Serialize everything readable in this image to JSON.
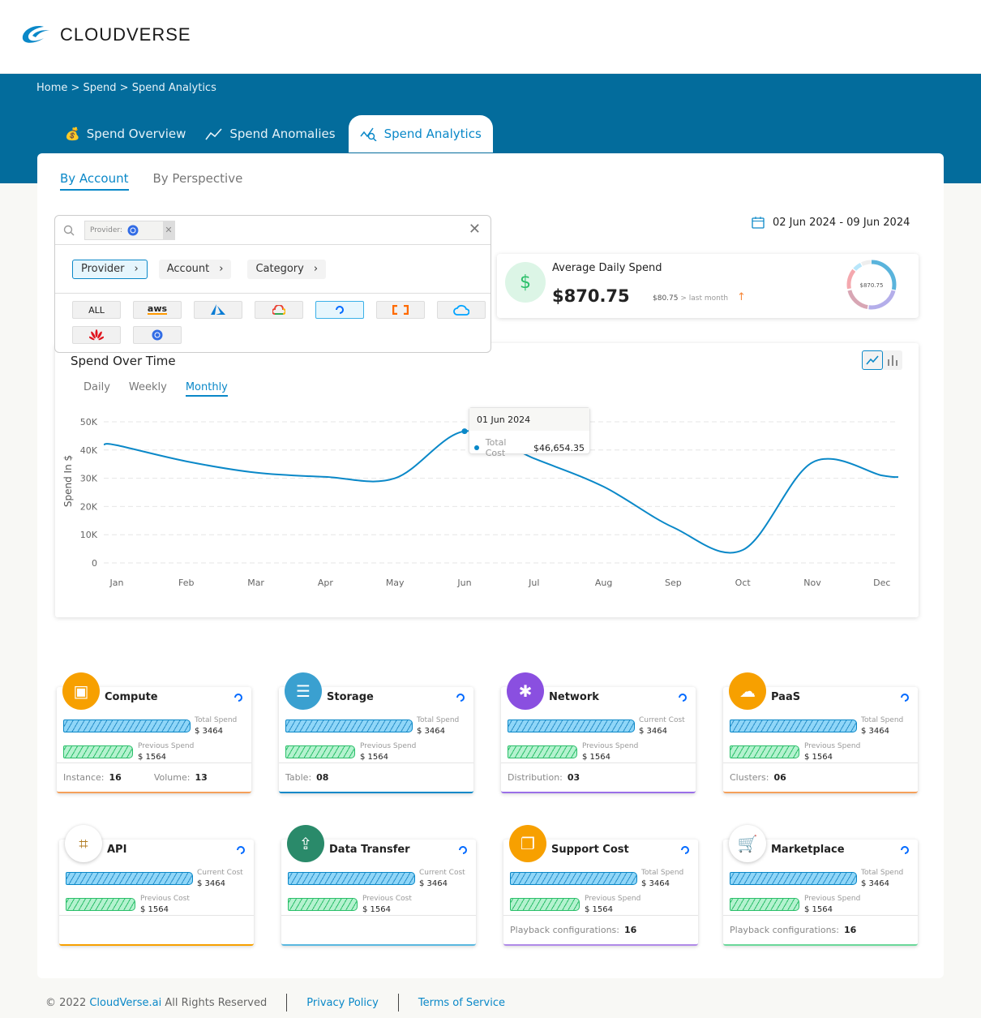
{
  "brand": {
    "name": "CLOUDVERSE",
    "color": "#036c9c"
  },
  "breadcrumb": "Home > Spend > Spend Analytics",
  "tabs": [
    {
      "label": "Spend Overview",
      "icon": "money-bag-icon"
    },
    {
      "label": "Spend Anomalies",
      "icon": "anomaly-icon"
    },
    {
      "label": "Spend Analytics",
      "icon": "analytics-icon",
      "active": true
    }
  ],
  "subtabs": [
    {
      "label": "By Account",
      "active": true
    },
    {
      "label": "By Perspective"
    }
  ],
  "filter": {
    "chip_label": "Provider:",
    "chip_value_icon": "kubernetes-icon",
    "levels": [
      "Provider",
      "Account",
      "Category"
    ],
    "active_level": "Provider",
    "providers": [
      "ALL",
      "aws",
      "azure",
      "google-cloud",
      "digitalocean",
      "alibaba-cloud",
      "tencent-cloud",
      "huawei",
      "kubernetes"
    ],
    "selected_provider": "digitalocean"
  },
  "date_range": "02 Jun 2024 - 09 Jun 2024",
  "avg_spend": {
    "title": "Average Daily Spend",
    "value": "$870.75",
    "delta": "$80.75",
    "delta_text": "> last month",
    "trend": "up",
    "donut_label": "$870.75"
  },
  "chart_data": {
    "type": "line",
    "title": "Spend Over Time",
    "periods": [
      "Daily",
      "Weekly",
      "Monthly"
    ],
    "active_period": "Monthly",
    "ylabel": "Spend In $",
    "ylim": [
      0,
      50000
    ],
    "yticks": [
      "0",
      "10K",
      "20K",
      "30K",
      "40K",
      "50K"
    ],
    "grid": true,
    "categories": [
      "Jan",
      "Feb",
      "Mar",
      "Apr",
      "May",
      "Jun",
      "Jul",
      "Aug",
      "Sep",
      "Oct",
      "Nov",
      "Dec"
    ],
    "series": [
      {
        "name": "Total Cost",
        "color": "#0a88c8",
        "values": [
          41700,
          36000,
          32000,
          30500,
          30000,
          46654.35,
          37000,
          27000,
          12600,
          4600,
          35600,
          31000
        ]
      }
    ],
    "tooltip": {
      "date": "01 Jun 2024",
      "label": "Total Cost",
      "value": "$46,654.35"
    }
  },
  "cards": [
    {
      "title": "Compute",
      "color": "#f7a000",
      "icon": "chip-icon",
      "top": "Total Spend",
      "top_value": "$ 3464",
      "bottom": "Previous Spend",
      "bottom_value": "$ 1564",
      "footer": [
        [
          "Instance:",
          "16"
        ],
        [
          "Volume:",
          "13"
        ]
      ],
      "accent": "#f5a05a"
    },
    {
      "title": "Storage",
      "color": "#3aa0d0",
      "icon": "database-icon",
      "top": "Total Spend",
      "top_value": "$ 3464",
      "bottom": "Previous Spend",
      "bottom_value": "$ 1564",
      "footer": [
        [
          "Table:",
          "08"
        ]
      ],
      "accent": "#0a88c8"
    },
    {
      "title": "Network",
      "color": "#8a4fe0",
      "icon": "network-icon",
      "top": "Current Cost",
      "top_value": "$ 3464",
      "bottom": "Previous Spend",
      "bottom_value": "$ 1564",
      "footer": [
        [
          "Distribution:",
          "03"
        ]
      ],
      "accent": "#9a6fe8"
    },
    {
      "title": "PaaS",
      "color": "#f7a000",
      "icon": "cloud-server-icon",
      "top": "Total Spend",
      "top_value": "$ 3464",
      "bottom": "Previous Spend",
      "bottom_value": "$ 1564",
      "footer": [
        [
          "Clusters:",
          "06"
        ]
      ],
      "accent": "#f5a05a"
    },
    {
      "title": "API",
      "color": "#ffffff",
      "icon": "api-icon",
      "top": "Current Cost",
      "top_value": "$ 3464",
      "bottom": "Previous Cost",
      "bottom_value": "$ 1564",
      "footer": [],
      "accent": "#f7a000"
    },
    {
      "title": "Data Transfer",
      "color": "#2a8a6a",
      "icon": "transfer-icon",
      "top": "Current Cost",
      "top_value": "$ 3464",
      "bottom": "Previous Cost",
      "bottom_value": "$ 1564",
      "footer": [],
      "accent": "#5ab8e0"
    },
    {
      "title": "Support Cost",
      "color": "#f7a000",
      "icon": "windows-icon",
      "top": "Total Spend",
      "top_value": "$ 3464",
      "bottom": "Previous Spend",
      "bottom_value": "$ 1564",
      "footer": [
        [
          "Playback configurations:",
          "16"
        ]
      ],
      "accent": "#b08ae8"
    },
    {
      "title": "Marketplace",
      "color": "#ffffff",
      "icon": "cart-icon",
      "top": "Total Spend",
      "top_value": "$ 3464",
      "bottom": "Previous Spend",
      "bottom_value": "$ 1564",
      "footer": [
        [
          "Playback configurations:",
          "16"
        ]
      ],
      "accent": "#6ad89a"
    }
  ],
  "footer": {
    "copyright": "© 2022",
    "company": "CloudVerse.ai",
    "rights": "All Rights Reserved",
    "privacy": "Privacy Policy",
    "terms": "Terms of Service"
  }
}
